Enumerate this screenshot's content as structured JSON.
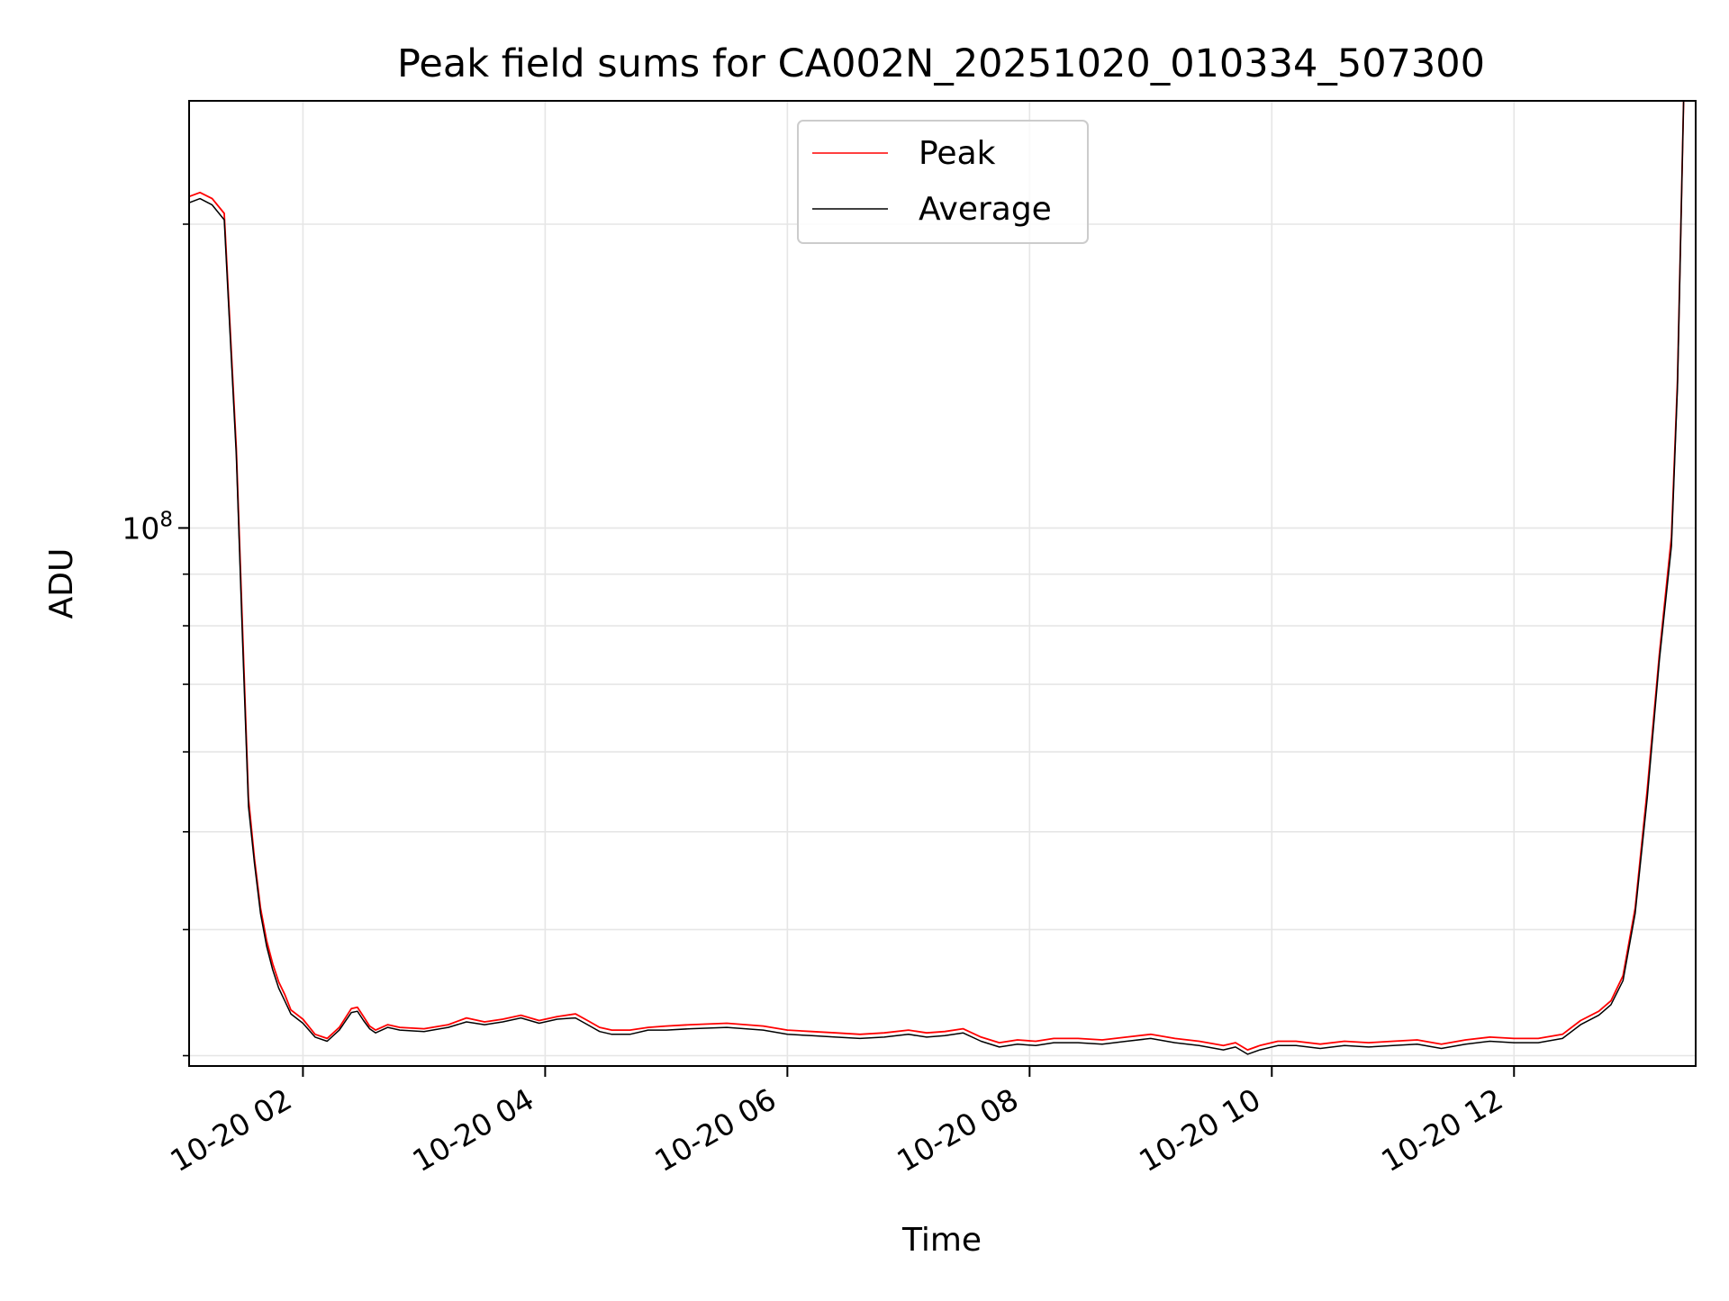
{
  "chart_data": {
    "type": "line",
    "title": "Peak field sums for CA002N_20251020_010334_507300",
    "xlabel": "Time",
    "ylabel": "ADU",
    "yscale": "log",
    "ylim": [
      29300000,
      265000000
    ],
    "x_range_hours": [
      1.06,
      13.5
    ],
    "x_ticks": [
      {
        "hour": 2,
        "label": "10-20 02"
      },
      {
        "hour": 4,
        "label": "10-20 04"
      },
      {
        "hour": 6,
        "label": "10-20 06"
      },
      {
        "hour": 8,
        "label": "10-20 08"
      },
      {
        "hour": 10,
        "label": "10-20 10"
      },
      {
        "hour": 12,
        "label": "10-20 12"
      }
    ],
    "y_major_ticks": [
      {
        "value": 100000000,
        "base": "10",
        "exp": "8"
      }
    ],
    "y_minor_ticks": [
      30000000,
      40000000,
      50000000,
      60000000,
      70000000,
      80000000,
      90000000,
      200000000
    ],
    "grid": true,
    "legend": {
      "position": "top-center",
      "entries": [
        {
          "label": "Peak",
          "color": "#ff0000"
        },
        {
          "label": "Average",
          "color": "#000000"
        }
      ]
    },
    "series": [
      {
        "name": "Peak",
        "color": "#ff0000",
        "x_hours": [
          1.06,
          1.15,
          1.25,
          1.35,
          1.45,
          1.5,
          1.55,
          1.6,
          1.65,
          1.7,
          1.75,
          1.8,
          1.85,
          1.9,
          2.0,
          2.1,
          2.2,
          2.3,
          2.4,
          2.45,
          2.5,
          2.55,
          2.6,
          2.7,
          2.8,
          3.0,
          3.2,
          3.35,
          3.5,
          3.65,
          3.8,
          3.95,
          4.1,
          4.25,
          4.35,
          4.45,
          4.55,
          4.7,
          4.85,
          5.0,
          5.2,
          5.5,
          5.8,
          6.0,
          6.2,
          6.4,
          6.6,
          6.8,
          7.0,
          7.15,
          7.3,
          7.45,
          7.6,
          7.75,
          7.9,
          8.05,
          8.2,
          8.4,
          8.6,
          8.8,
          9.0,
          9.2,
          9.4,
          9.6,
          9.7,
          9.8,
          9.9,
          10.05,
          10.2,
          10.4,
          10.6,
          10.8,
          11.0,
          11.2,
          11.4,
          11.6,
          11.8,
          12.0,
          12.2,
          12.4,
          12.55,
          12.7,
          12.8,
          12.9,
          13.0,
          13.1,
          13.2,
          13.3,
          13.35,
          13.4
        ],
        "values": [
          213000000,
          215000000,
          212000000,
          205000000,
          120000000,
          80000000,
          54000000,
          47000000,
          42000000,
          39000000,
          37000000,
          35500000,
          34500000,
          33300000,
          32600000,
          31500000,
          31200000,
          32000000,
          33400000,
          33500000,
          32800000,
          32100000,
          31800000,
          32200000,
          32000000,
          31900000,
          32200000,
          32700000,
          32400000,
          32600000,
          32900000,
          32500000,
          32800000,
          33000000,
          32500000,
          32000000,
          31800000,
          31800000,
          32000000,
          32100000,
          32200000,
          32300000,
          32100000,
          31800000,
          31700000,
          31600000,
          31500000,
          31600000,
          31800000,
          31600000,
          31700000,
          31900000,
          31300000,
          30900000,
          31100000,
          31000000,
          31200000,
          31200000,
          31100000,
          31300000,
          31500000,
          31200000,
          31000000,
          30700000,
          30900000,
          30400000,
          30700000,
          31000000,
          31000000,
          30800000,
          31000000,
          30900000,
          31000000,
          31100000,
          30800000,
          31100000,
          31300000,
          31200000,
          31200000,
          31500000,
          32500000,
          33200000,
          34000000,
          36000000,
          42000000,
          55000000,
          75000000,
          98000000,
          140000000,
          265000000
        ]
      },
      {
        "name": "Average",
        "color": "#000000",
        "x_hours": [
          1.06,
          1.15,
          1.25,
          1.35,
          1.45,
          1.5,
          1.55,
          1.6,
          1.65,
          1.7,
          1.75,
          1.8,
          1.85,
          1.9,
          2.0,
          2.1,
          2.2,
          2.3,
          2.4,
          2.45,
          2.5,
          2.55,
          2.6,
          2.7,
          2.8,
          3.0,
          3.2,
          3.35,
          3.5,
          3.65,
          3.8,
          3.95,
          4.1,
          4.25,
          4.35,
          4.45,
          4.55,
          4.7,
          4.85,
          5.0,
          5.2,
          5.5,
          5.8,
          6.0,
          6.2,
          6.4,
          6.6,
          6.8,
          7.0,
          7.15,
          7.3,
          7.45,
          7.6,
          7.75,
          7.9,
          8.05,
          8.2,
          8.4,
          8.6,
          8.8,
          9.0,
          9.2,
          9.4,
          9.6,
          9.7,
          9.8,
          9.9,
          10.05,
          10.2,
          10.4,
          10.6,
          10.8,
          11.0,
          11.2,
          11.4,
          11.6,
          11.8,
          12.0,
          12.2,
          12.4,
          12.55,
          12.7,
          12.8,
          12.9,
          13.0,
          13.1,
          13.2,
          13.3,
          13.35,
          13.4
        ],
        "values": [
          210000000,
          212000000,
          209000000,
          202000000,
          118000000,
          78000000,
          53000000,
          46500000,
          41500000,
          38500000,
          36500000,
          35000000,
          34000000,
          33000000,
          32300000,
          31300000,
          31000000,
          31800000,
          33100000,
          33200000,
          32500000,
          31900000,
          31600000,
          32000000,
          31800000,
          31700000,
          32000000,
          32400000,
          32200000,
          32400000,
          32700000,
          32300000,
          32600000,
          32700000,
          32200000,
          31700000,
          31500000,
          31500000,
          31800000,
          31800000,
          31900000,
          32000000,
          31800000,
          31500000,
          31400000,
          31300000,
          31200000,
          31300000,
          31500000,
          31300000,
          31400000,
          31600000,
          31000000,
          30600000,
          30800000,
          30700000,
          30900000,
          30900000,
          30800000,
          31000000,
          31200000,
          30900000,
          30700000,
          30400000,
          30600000,
          30100000,
          30400000,
          30700000,
          30700000,
          30500000,
          30700000,
          30600000,
          30700000,
          30800000,
          30500000,
          30800000,
          31000000,
          30900000,
          30900000,
          31200000,
          32200000,
          32900000,
          33700000,
          35600000,
          41500000,
          54000000,
          74000000,
          96000000,
          138000000,
          265000000
        ]
      }
    ]
  }
}
